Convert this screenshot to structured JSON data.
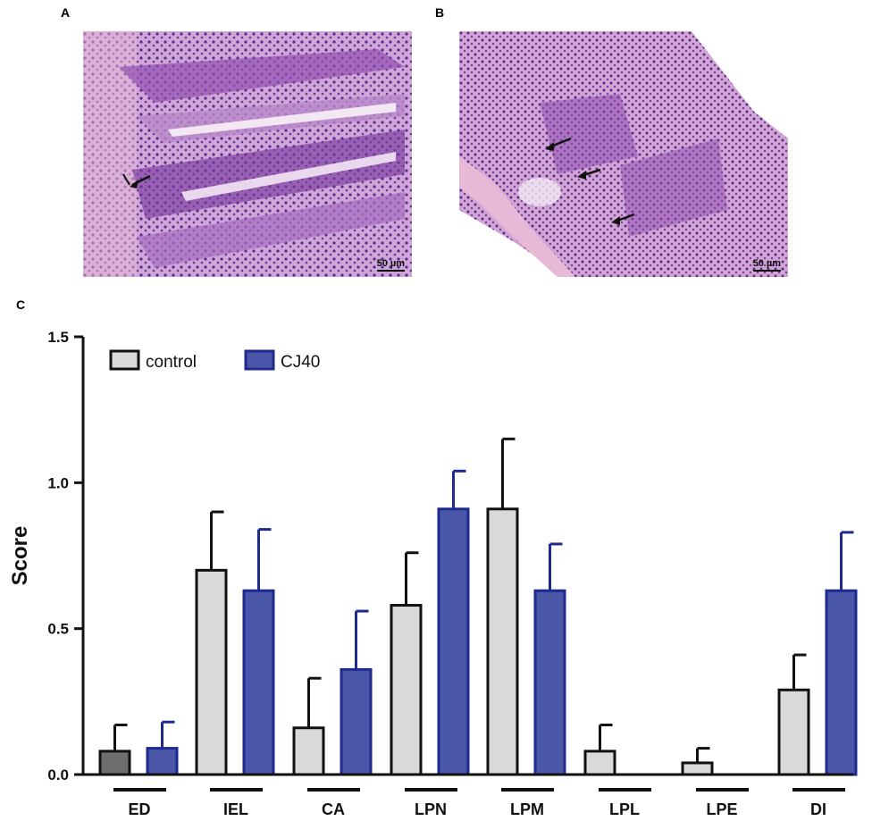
{
  "panels": {
    "a": {
      "label": "A",
      "scale_bar": "50 µm"
    },
    "b": {
      "label": "B",
      "scale_bar": "50 µm"
    },
    "c": {
      "label": "C"
    }
  },
  "colors": {
    "control_fill": "#d9d9d9",
    "control_dark_fill": "#6e6e6e",
    "control_stroke": "#111111",
    "cj40_fill": "#4a56a8",
    "cj40_stroke": "#1f2a8f",
    "tissue_bg": "#c9a6d6",
    "tissue_stain": "#5a2a8a",
    "tissue_pink": "#e7b9d6"
  },
  "chart_data": {
    "type": "bar",
    "ylabel": "Score",
    "xlabel": "",
    "ylim": [
      0,
      1.5
    ],
    "yticks": [
      "0.0",
      "0.5",
      "1.0",
      "1.5"
    ],
    "categories": [
      "ED",
      "IEL",
      "CA",
      "LPN",
      "LPM",
      "LPL",
      "LPE",
      "DI"
    ],
    "legend_position": "top-left",
    "series": [
      {
        "name": "control",
        "values": [
          0.08,
          0.7,
          0.16,
          0.58,
          0.91,
          0.08,
          0.04,
          0.29
        ],
        "errors": [
          0.09,
          0.2,
          0.17,
          0.18,
          0.24,
          0.09,
          0.05,
          0.12
        ]
      },
      {
        "name": "CJ40",
        "values": [
          0.09,
          0.63,
          0.36,
          0.91,
          0.63,
          0.0,
          0.0,
          0.63
        ],
        "errors": [
          0.09,
          0.21,
          0.2,
          0.13,
          0.16,
          0.0,
          0.0,
          0.2
        ]
      }
    ]
  }
}
